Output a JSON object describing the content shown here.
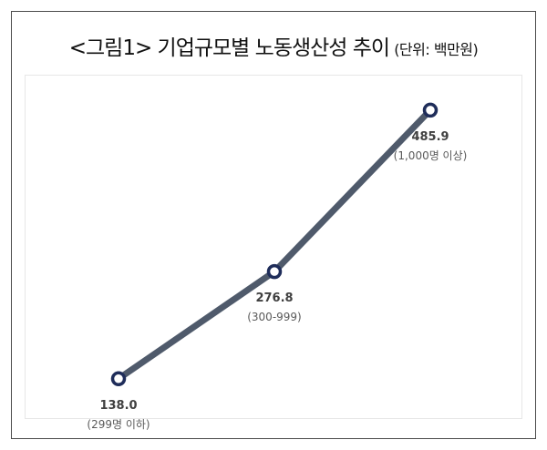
{
  "title": {
    "main": "<그림1> 기업규모별 노동생산성 추이",
    "unit": "(단위: 백만원)"
  },
  "chart_data": {
    "type": "line",
    "title": "<그림1> 기업규모별 노동생산성 추이",
    "unit": "(단위: 백만원)",
    "categories": [
      "(299명 이하)",
      "(300-999)",
      "(1,000명 이상)"
    ],
    "values": [
      138.0,
      276.8,
      485.9
    ],
    "value_labels": [
      "138.0",
      "276.8",
      "485.9"
    ],
    "xlabel": "",
    "ylabel": "",
    "ylim": [
      100,
      520
    ],
    "grid": false,
    "legend": "none",
    "axes_visible": false,
    "colors": {
      "line": "#4f5a6b",
      "marker_edge": "#1f2d5a",
      "marker_fill": "#ffffff"
    }
  }
}
